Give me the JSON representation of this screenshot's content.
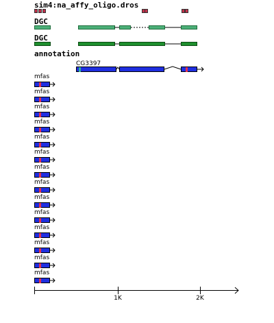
{
  "tracks": [
    {
      "title": "sim4:na_affy_oligo.dros"
    },
    {
      "title": "DGC"
    },
    {
      "title": "DGC"
    },
    {
      "title": "annotation",
      "gene_label": "CG3397",
      "rows": [
        "mfas",
        "mfas",
        "mfas",
        "mfas",
        "mfas",
        "mfas",
        "mfas",
        "mfas",
        "mfas",
        "mfas",
        "mfas",
        "mfas",
        "mfas",
        "mfas"
      ]
    }
  ],
  "axis": {
    "labels": [
      "1K",
      "2K"
    ]
  }
}
